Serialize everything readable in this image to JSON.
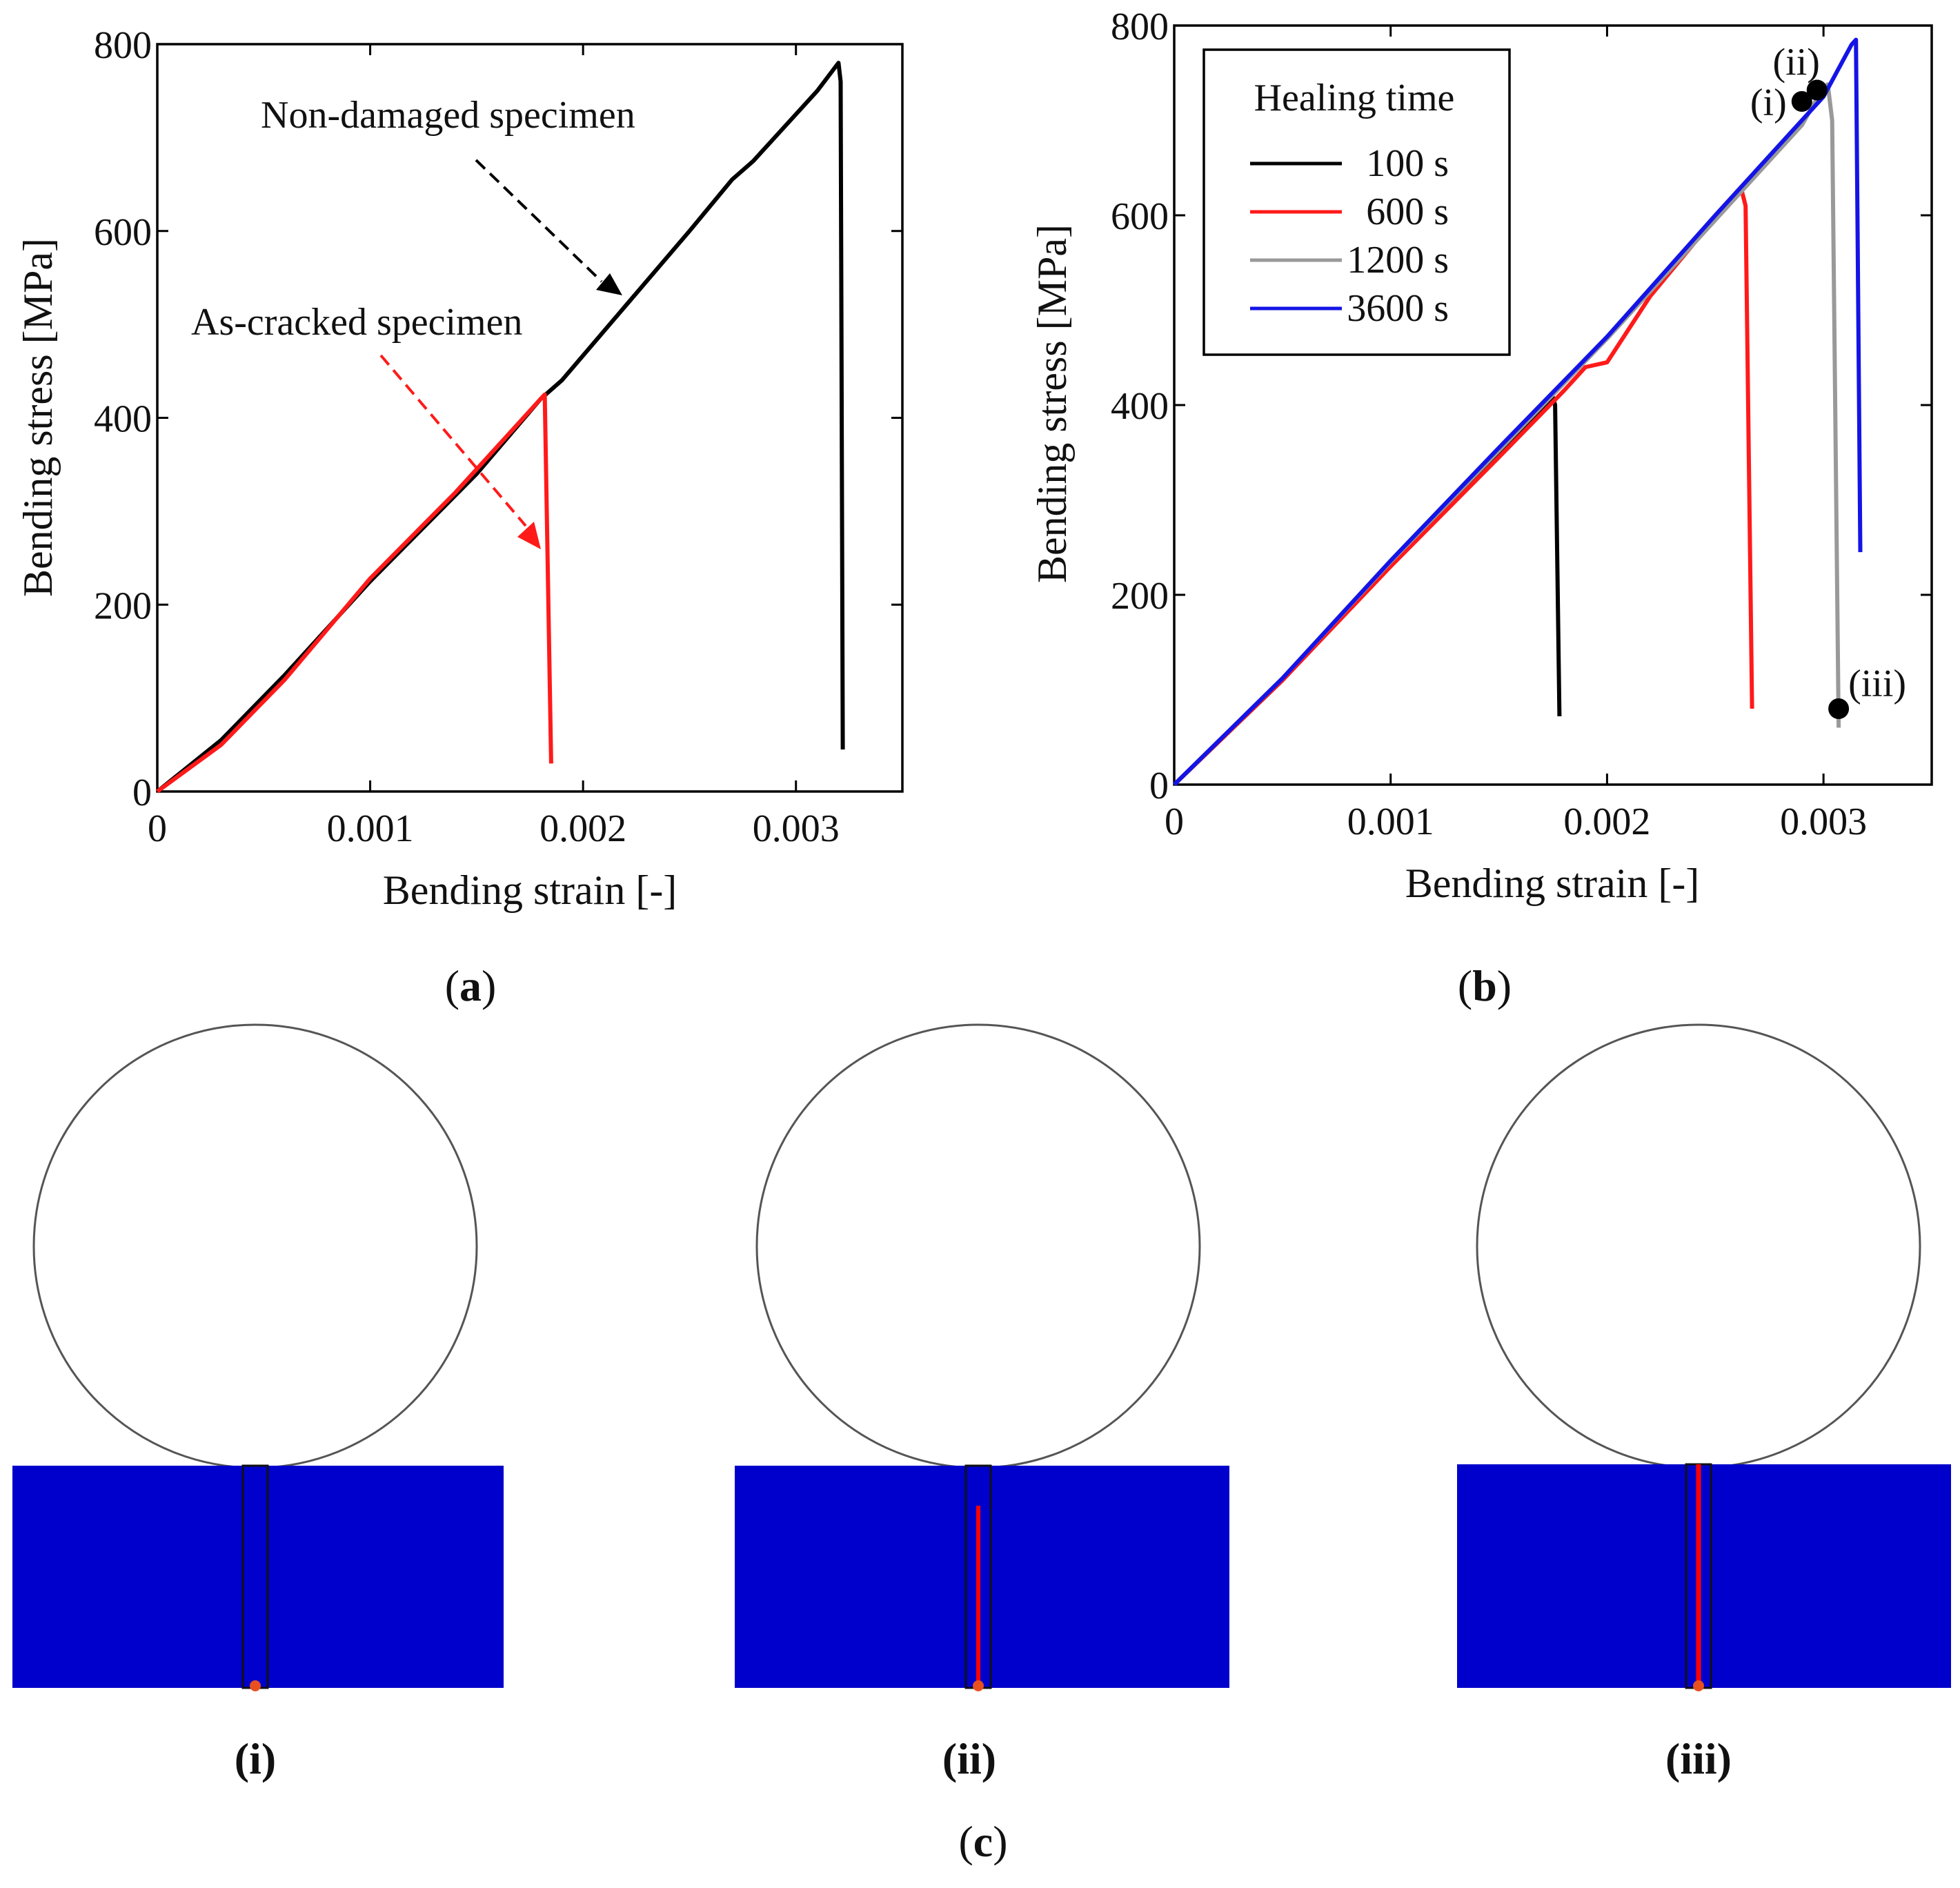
{
  "colors": {
    "black": "#000000",
    "red": "#ff1a1a",
    "gray": "#999999",
    "blue": "#1414e6",
    "specimen": "#0000cc",
    "crack": "#ff0000"
  },
  "chart_data": [
    {
      "id": "a",
      "type": "line",
      "panel_label": "a",
      "xlabel": "Bending strain [-]",
      "ylabel": "Bending stress [MPa]",
      "xlim": [
        0,
        0.0035
      ],
      "ylim": [
        0,
        800
      ],
      "xticks": [
        0,
        0.001,
        0.002,
        0.003
      ],
      "xtick_labels": [
        "0",
        "0.001",
        "0.002",
        "0.003"
      ],
      "yticks": [
        0,
        200,
        400,
        600,
        800
      ],
      "ytick_labels": [
        "0",
        "200",
        "400",
        "600",
        "800"
      ],
      "series": [
        {
          "name": "Non-damaged specimen",
          "color": "#000000",
          "x": [
            0,
            0.0003,
            0.0006,
            0.001,
            0.0015,
            0.0018,
            0.0019,
            0.0022,
            0.0025,
            0.0027,
            0.0028,
            0.0031,
            0.0032,
            0.00321,
            0.00322
          ],
          "y": [
            0,
            55,
            125,
            225,
            340,
            420,
            440,
            520,
            600,
            655,
            675,
            750,
            780,
            760,
            45
          ]
        },
        {
          "name": "As-cracked specimen",
          "color": "#ff1a1a",
          "x": [
            0,
            0.0003,
            0.0006,
            0.001,
            0.0014,
            0.0017,
            0.0018,
            0.00182,
            0.00185
          ],
          "y": [
            0,
            50,
            120,
            228,
            320,
            395,
            420,
            425,
            30
          ]
        }
      ],
      "annotations": [
        {
          "text": "Non-damaged specimen",
          "target": [
            0.0022,
            530
          ],
          "color": "#000000"
        },
        {
          "text": "As-cracked specimen",
          "target": [
            0.00182,
            255
          ],
          "color": "#ff1a1a"
        }
      ]
    },
    {
      "id": "b",
      "type": "line",
      "panel_label": "b",
      "xlabel": "Bending strain [-]",
      "ylabel": "Bending stress [MPa]",
      "xlim": [
        0,
        0.0035
      ],
      "ylim": [
        0,
        800
      ],
      "xticks": [
        0,
        0.001,
        0.002,
        0.003
      ],
      "xtick_labels": [
        "0",
        "0.001",
        "0.002",
        "0.003"
      ],
      "yticks": [
        0,
        200,
        400,
        600,
        800
      ],
      "ytick_labels": [
        "0",
        "200",
        "400",
        "600",
        "800"
      ],
      "legend_title": "Healing time",
      "legend_loc": "top-left",
      "series": [
        {
          "name": "100 s",
          "color": "#000000",
          "x": [
            0,
            0.0005,
            0.001,
            0.0015,
            0.00175,
            0.00176,
            0.00178
          ],
          "y": [
            0,
            110,
            232,
            348,
            408,
            400,
            72
          ]
        },
        {
          "name": "600 s",
          "color": "#ff1a1a",
          "x": [
            0,
            0.0005,
            0.001,
            0.0015,
            0.0018,
            0.0019,
            0.002,
            0.0022,
            0.0024,
            0.0026,
            0.00262,
            0.00264,
            0.00267
          ],
          "y": [
            0,
            110,
            230,
            345,
            415,
            440,
            445,
            515,
            570,
            625,
            628,
            610,
            80
          ]
        },
        {
          "name": "1200 s",
          "color": "#999999",
          "x": [
            0,
            0.0005,
            0.001,
            0.0015,
            0.002,
            0.0025,
            0.0029,
            0.003,
            0.00302,
            0.00304,
            0.00307
          ],
          "y": [
            0,
            112,
            235,
            352,
            470,
            595,
            695,
            735,
            738,
            700,
            60
          ]
        },
        {
          "name": "3600 s",
          "color": "#1414e6",
          "x": [
            0,
            0.0005,
            0.001,
            0.0015,
            0.002,
            0.0025,
            0.003,
            0.00313,
            0.00315,
            0.00317
          ],
          "y": [
            0,
            112,
            236,
            355,
            472,
            600,
            725,
            780,
            785,
            245
          ]
        }
      ],
      "markers": [
        {
          "label": "(i)",
          "x": 0.0029,
          "y": 720
        },
        {
          "label": "(ii)",
          "x": 0.00297,
          "y": 732
        },
        {
          "label": "(iii)",
          "x": 0.00307,
          "y": 80
        }
      ]
    }
  ],
  "panel_c": {
    "label": "c",
    "snapshots": [
      {
        "label": "(i)",
        "crack_fraction": 0.0
      },
      {
        "label": "(ii)",
        "crack_fraction": 0.82
      },
      {
        "label": "(iii)",
        "crack_fraction": 1.0
      }
    ]
  }
}
